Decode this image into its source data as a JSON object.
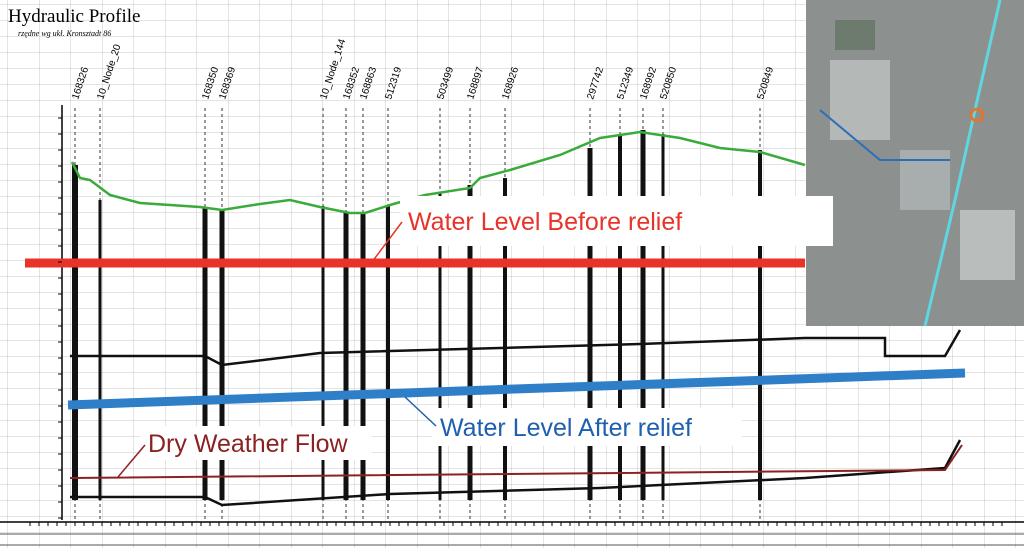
{
  "header": {
    "title": "Hydraulic Profile",
    "subtitle": "rzędne wg ukł. Kronsztadt 86"
  },
  "nodes": [
    "168326",
    "10_Node_20",
    "168350",
    "168369",
    "10_Node_144",
    "168352",
    "168863",
    "512319",
    "503499",
    "168897",
    "168926",
    "297742",
    "512349",
    "168992",
    "520850",
    "520849"
  ],
  "annotations": {
    "before": "Water Level Before relief",
    "after": "Water Level After relief",
    "dry": "Dry Weather Flow"
  }
}
